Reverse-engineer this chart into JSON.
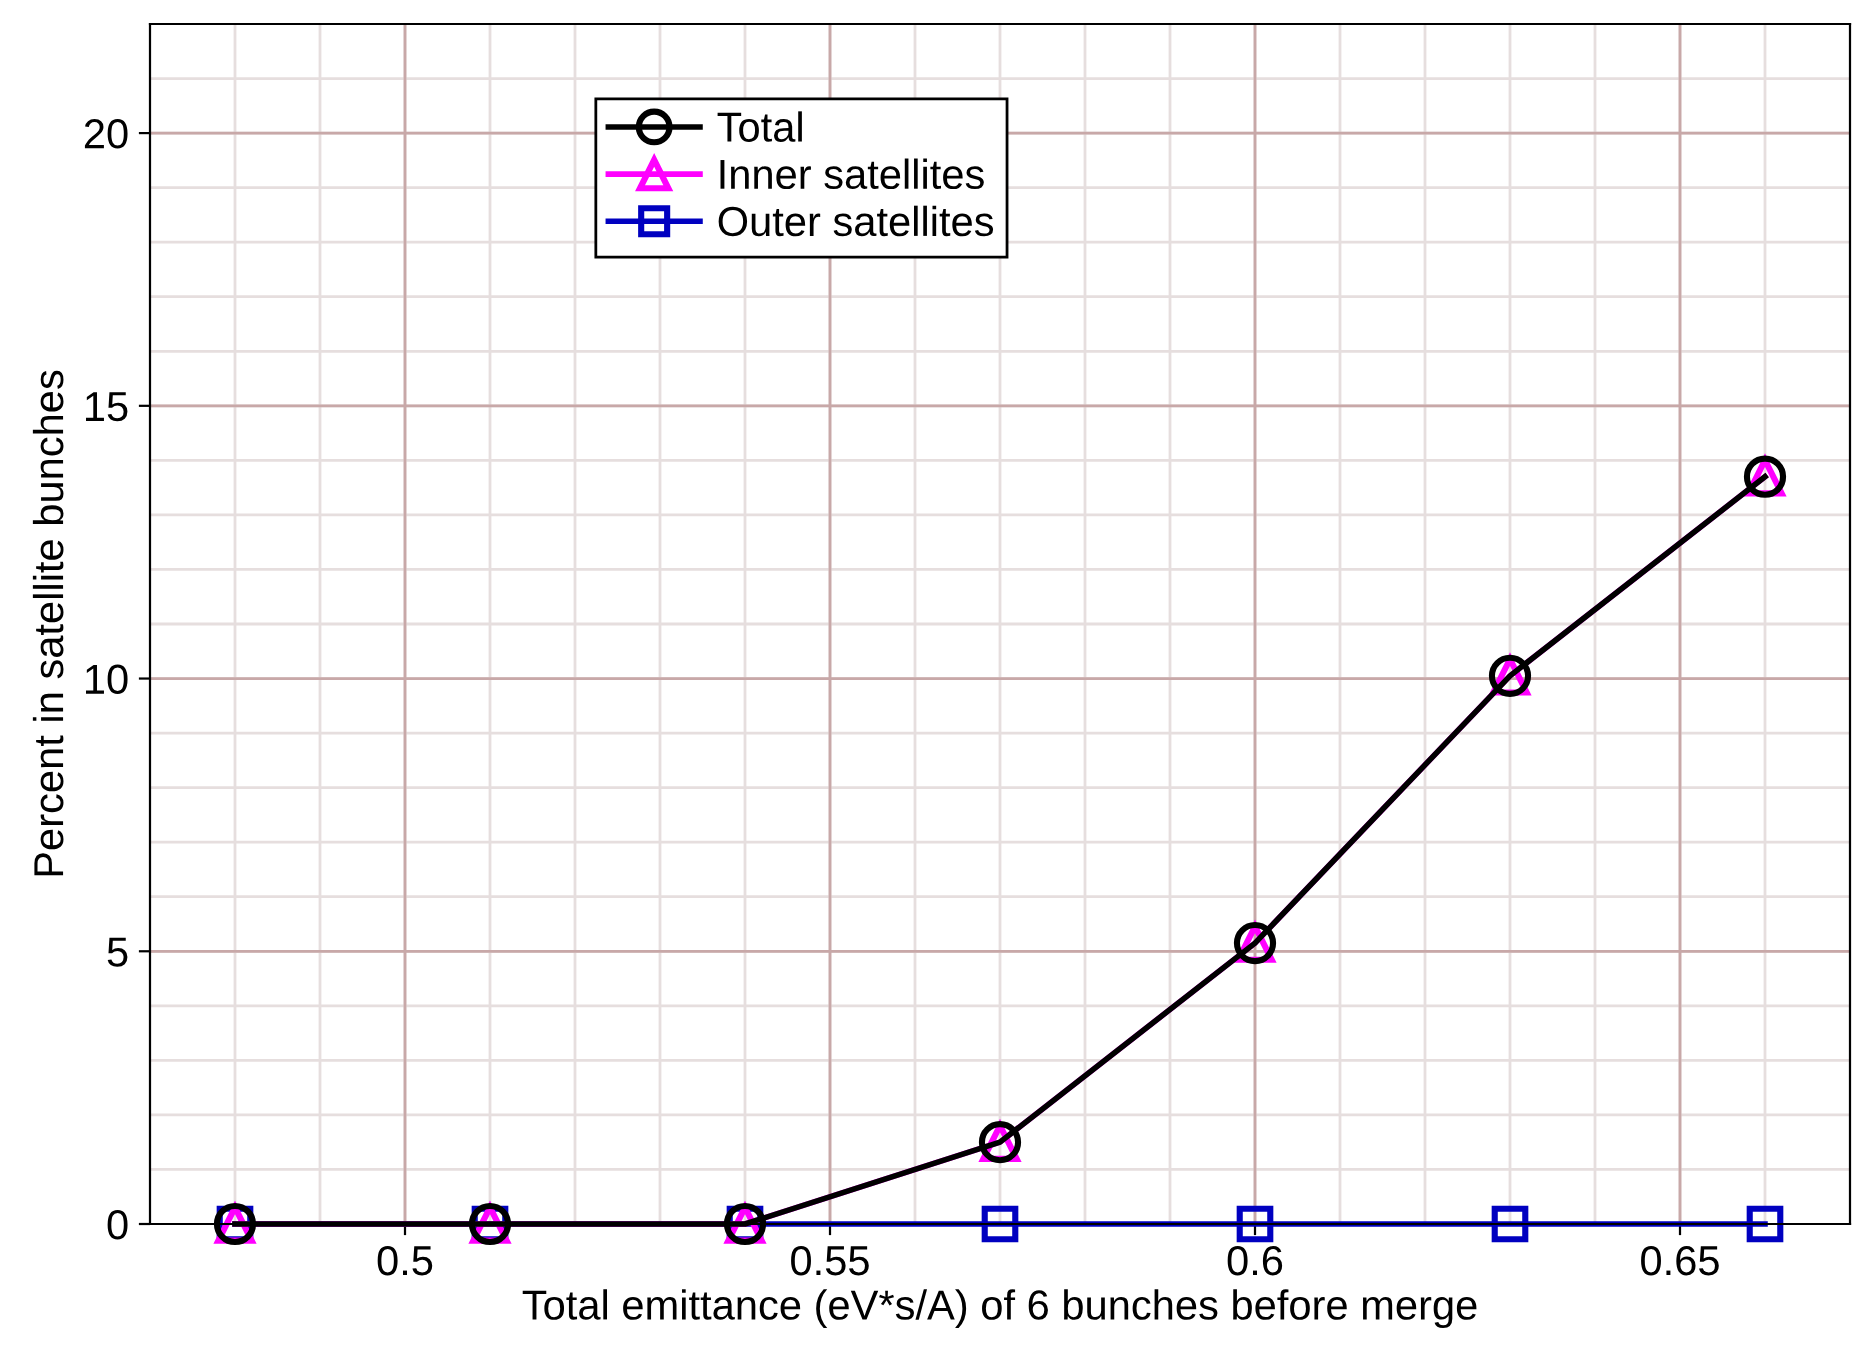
{
  "chart_data": {
    "type": "line",
    "xlabel": "Total emittance (eV*s/A) of 6 bunches before merge",
    "ylabel": "Percent in satellite bunches",
    "x": [
      0.48,
      0.51,
      0.54,
      0.57,
      0.6,
      0.63,
      0.66
    ],
    "series": [
      {
        "name": "Total",
        "color": "#000000",
        "marker": "circle",
        "values": [
          0,
          0,
          0,
          1.5,
          5.15,
          10.05,
          13.7
        ]
      },
      {
        "name": "Inner satellites",
        "color": "#ff00ff",
        "marker": "triangle",
        "values": [
          0,
          0,
          0,
          1.5,
          5.15,
          10.05,
          13.7
        ]
      },
      {
        "name": "Outer satellites",
        "color": "#0000c0",
        "marker": "square",
        "values": [
          0,
          0,
          0,
          0,
          0,
          0,
          0
        ]
      }
    ],
    "xlim": [
      0.47,
      0.67
    ],
    "xticks": [
      0.5,
      0.55,
      0.6,
      0.65
    ],
    "ylim": [
      0,
      22
    ],
    "yticks": [
      0,
      5,
      10,
      15,
      20
    ],
    "grid": true,
    "legend": "top left",
    "line_style": "solid"
  }
}
